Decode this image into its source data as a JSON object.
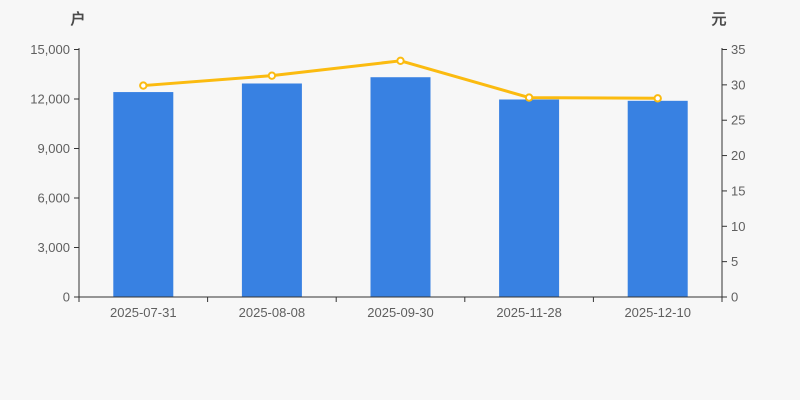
{
  "chart": {
    "background": "#f7f7f7",
    "bar_color": "#3881e2",
    "line_color": "#fbbb10",
    "marker_fill": "#ffffff",
    "axis_color": "#333333",
    "tick_label_color": "#5f5f5f",
    "axis_name_color": "#4a4a4a"
  },
  "chart_data": {
    "type": "bar",
    "title": "",
    "categories": [
      "2025-07-31",
      "2025-08-08",
      "2025-09-30",
      "2025-11-28",
      "2025-12-10"
    ],
    "series": [
      {
        "name": "户",
        "type": "bar",
        "yaxis": "left",
        "values": [
          12420,
          12940,
          13320,
          11970,
          11890
        ]
      },
      {
        "name": "元",
        "type": "line",
        "yaxis": "right",
        "values": [
          29.9,
          31.3,
          33.4,
          28.2,
          28.1
        ]
      }
    ],
    "left_axis": {
      "name": "户",
      "min": 0,
      "max": 15000,
      "step": 3000,
      "tick_labels": [
        "0",
        "3,000",
        "6,000",
        "9,000",
        "12,000",
        "15,000"
      ]
    },
    "right_axis": {
      "name": "元",
      "min": 0,
      "max": 35,
      "step": 5,
      "tick_labels": [
        "0",
        "5",
        "10",
        "15",
        "20",
        "25",
        "30",
        "35"
      ]
    },
    "grid": false,
    "legend": "none"
  }
}
